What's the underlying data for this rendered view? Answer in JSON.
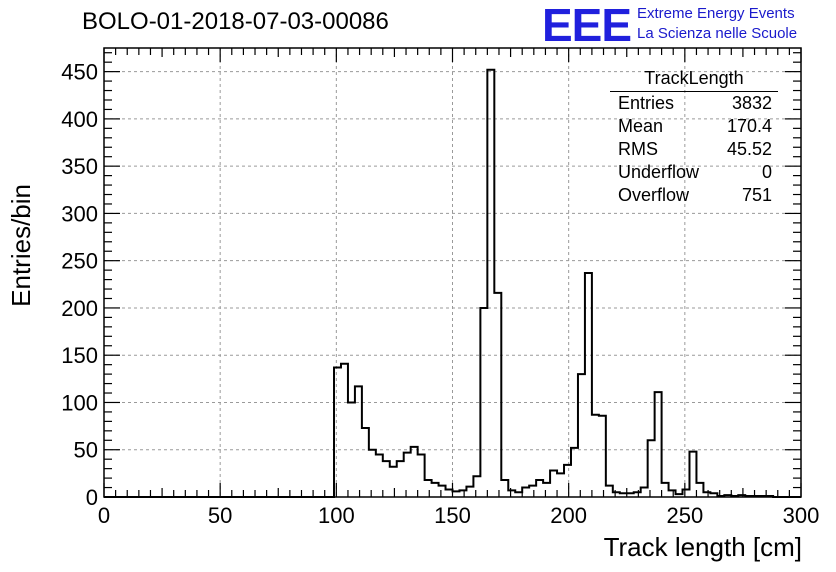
{
  "header": {
    "title": "BOLO-01-2018-07-03-00086",
    "logo_text": "EEE",
    "logo_line1": "Extreme Energy Events",
    "logo_line2": "La Scienza nelle Scuole"
  },
  "stats_box": {
    "title": "TrackLength",
    "rows": [
      {
        "label": "Entries",
        "value": "3832"
      },
      {
        "label": "Mean",
        "value": "170.4"
      },
      {
        "label": "RMS",
        "value": "45.52"
      },
      {
        "label": "Underflow",
        "value": "0"
      },
      {
        "label": "Overflow",
        "value": "751"
      }
    ]
  },
  "chart_data": {
    "type": "bar",
    "style": "step-histogram",
    "title": "BOLO-01-2018-07-03-00086",
    "xlabel": "Track length [cm]",
    "ylabel": "Entries/bin",
    "xlim": [
      0,
      300
    ],
    "ylim": [
      0,
      475
    ],
    "xticks": [
      0,
      50,
      100,
      150,
      200,
      250,
      300
    ],
    "yticks": [
      0,
      50,
      100,
      150,
      200,
      250,
      300,
      350,
      400,
      450
    ],
    "grid": true,
    "bin_width": 3,
    "bin_start": 99,
    "values": [
      137,
      141,
      100,
      117,
      73,
      50,
      45,
      38,
      32,
      38,
      47,
      53,
      45,
      18,
      15,
      12,
      8,
      6,
      7,
      11,
      22,
      200,
      452,
      216,
      18,
      7,
      5,
      10,
      12,
      18,
      15,
      28,
      25,
      34,
      52,
      130,
      237,
      87,
      86,
      12,
      5,
      4,
      4,
      5,
      10,
      60,
      111,
      15,
      7,
      3,
      8,
      48,
      15,
      5,
      4,
      1,
      2,
      1,
      2,
      1,
      1,
      1,
      1,
      0
    ],
    "line_color": "#000000",
    "grid_color": "#9a9a9a"
  }
}
